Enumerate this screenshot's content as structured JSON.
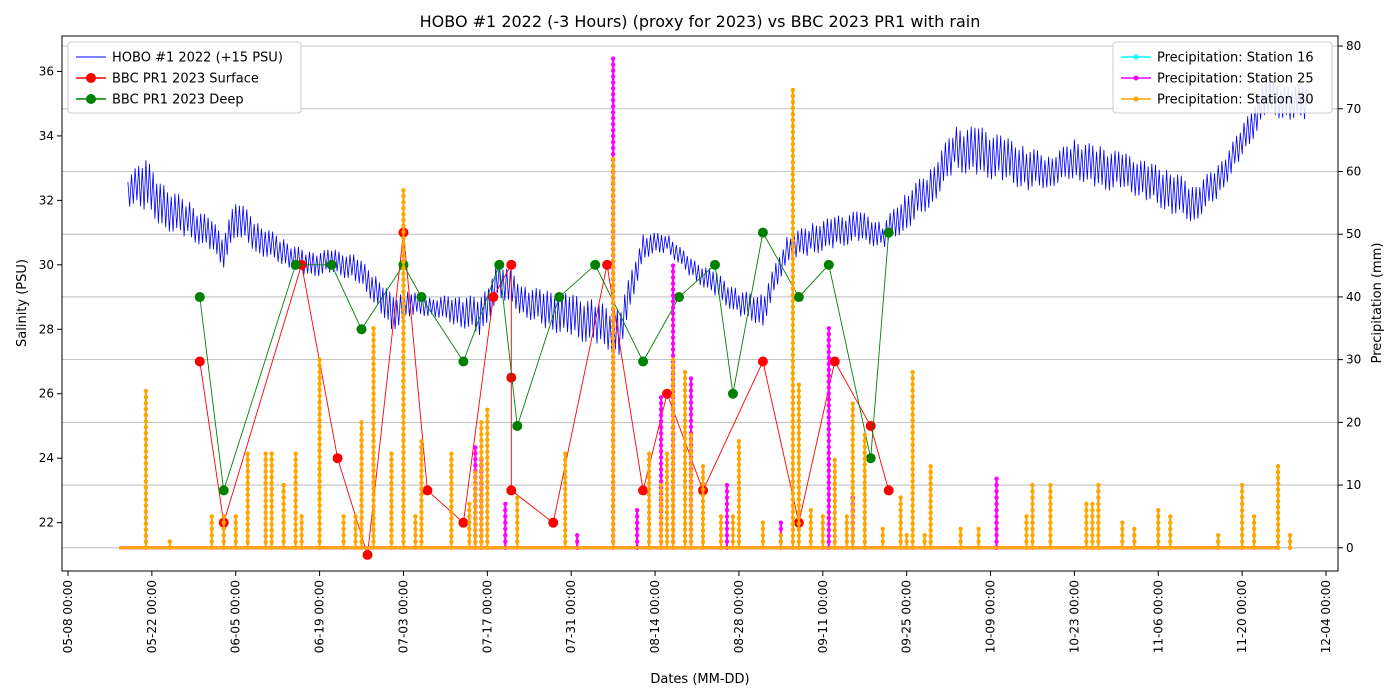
{
  "chart_data": {
    "type": "line",
    "title": "HOBO #1 2022 (-3 Hours) (proxy for 2023) vs BBC 2023 PR1 with rain",
    "xlabel": "Dates (MM-DD)",
    "ylabel_left": "Salinity (PSU)",
    "ylabel_right": "Precipitation (mm)",
    "x_domain": [
      "2023-05-07",
      "2023-12-06"
    ],
    "ylim_left": [
      20.5,
      37.1
    ],
    "ylim_right": [
      -3.7,
      81.6
    ],
    "grid": "horizontal-right-axis",
    "x_ticks": [
      {
        "date": "2023-05-08",
        "label": "05-08 00:00"
      },
      {
        "date": "2023-05-22",
        "label": "05-22 00:00"
      },
      {
        "date": "2023-06-05",
        "label": "06-05 00:00"
      },
      {
        "date": "2023-06-19",
        "label": "06-19 00:00"
      },
      {
        "date": "2023-07-03",
        "label": "07-03 00:00"
      },
      {
        "date": "2023-07-17",
        "label": "07-17 00:00"
      },
      {
        "date": "2023-07-31",
        "label": "07-31 00:00"
      },
      {
        "date": "2023-08-14",
        "label": "08-14 00:00"
      },
      {
        "date": "2023-08-28",
        "label": "08-28 00:00"
      },
      {
        "date": "2023-09-11",
        "label": "09-11 00:00"
      },
      {
        "date": "2023-09-25",
        "label": "09-25 00:00"
      },
      {
        "date": "2023-10-09",
        "label": "10-09 00:00"
      },
      {
        "date": "2023-10-23",
        "label": "10-23 00:00"
      },
      {
        "date": "2023-11-06",
        "label": "11-06 00:00"
      },
      {
        "date": "2023-11-20",
        "label": "11-20 00:00"
      },
      {
        "date": "2023-12-04",
        "label": "12-04 00:00"
      }
    ],
    "y_ticks_left": [
      22,
      24,
      26,
      28,
      30,
      32,
      34,
      36
    ],
    "y_ticks_right": [
      0,
      10,
      20,
      30,
      40,
      50,
      60,
      70,
      80
    ],
    "legend_left": {
      "placement": "upper-left",
      "entries": [
        {
          "label": "HOBO #1 2022 (+15 PSU)",
          "color": "#0000ff",
          "marker": "none"
        },
        {
          "label": "BBC PR1 2023 Surface",
          "color": "#ff0000",
          "marker": "circle"
        },
        {
          "label": "BBC PR1 2023 Deep",
          "color": "#008000",
          "marker": "circle"
        }
      ]
    },
    "legend_right": {
      "placement": "upper-right",
      "entries": [
        {
          "label": "Precipitation: Station 16",
          "color": "#00ffff",
          "marker": "dot"
        },
        {
          "label": "Precipitation: Station 25",
          "color": "#ff00ff",
          "marker": "dot"
        },
        {
          "label": "Precipitation: Station 30",
          "color": "#ffa500",
          "marker": "dot"
        }
      ]
    },
    "series": [
      {
        "name": "HOBO #1 2022 (+15 PSU)",
        "axis": "left",
        "color": "#0000ff",
        "style": "line-oscillating",
        "x": [
          "2023-05-18",
          "2023-05-21",
          "2023-05-24",
          "2023-05-28",
          "2023-06-01",
          "2023-06-03",
          "2023-06-05",
          "2023-06-09",
          "2023-06-13",
          "2023-06-17",
          "2023-06-21",
          "2023-06-25",
          "2023-06-29",
          "2023-07-01",
          "2023-07-04",
          "2023-07-08",
          "2023-07-12",
          "2023-07-16",
          "2023-07-19",
          "2023-07-23",
          "2023-07-27",
          "2023-07-31",
          "2023-08-04",
          "2023-08-08",
          "2023-08-12",
          "2023-08-16",
          "2023-08-20",
          "2023-08-24",
          "2023-08-28",
          "2023-09-01",
          "2023-09-05",
          "2023-09-09",
          "2023-09-13",
          "2023-09-17",
          "2023-09-21",
          "2023-09-25",
          "2023-09-29",
          "2023-10-03",
          "2023-10-07",
          "2023-10-11",
          "2023-10-15",
          "2023-10-19",
          "2023-10-23",
          "2023-10-27",
          "2023-10-31",
          "2023-11-04",
          "2023-11-08",
          "2023-11-12",
          "2023-11-16",
          "2023-11-20",
          "2023-11-24",
          "2023-11-28",
          "2023-12-01"
        ],
        "y": [
          32.3,
          32.5,
          31.8,
          31.4,
          30.9,
          30.4,
          31.5,
          30.8,
          30.4,
          30.0,
          30.1,
          29.9,
          29.1,
          28.5,
          28.8,
          28.7,
          28.6,
          28.4,
          29.6,
          28.9,
          28.6,
          28.4,
          28.2,
          27.9,
          30.6,
          30.7,
          29.9,
          29.4,
          28.8,
          28.6,
          30.5,
          30.8,
          31.0,
          31.2,
          30.9,
          31.7,
          32.4,
          33.6,
          33.5,
          33.3,
          33.0,
          32.9,
          33.3,
          33.0,
          32.9,
          32.6,
          32.3,
          31.9,
          32.6,
          33.8,
          35.2,
          35.0,
          35.1
        ],
        "amplitude": [
          0.5,
          0.8,
          0.7,
          0.6,
          0.5,
          0.5,
          0.6,
          0.5,
          0.4,
          0.4,
          0.4,
          0.4,
          0.5,
          0.6,
          0.4,
          0.3,
          0.5,
          0.6,
          0.6,
          0.5,
          0.6,
          0.7,
          0.7,
          0.7,
          0.4,
          0.3,
          0.3,
          0.4,
          0.4,
          0.5,
          0.4,
          0.5,
          0.5,
          0.5,
          0.4,
          0.6,
          0.6,
          0.7,
          0.8,
          0.7,
          0.7,
          0.5,
          0.6,
          0.7,
          0.6,
          0.6,
          0.7,
          0.6,
          0.5,
          0.5,
          0.6,
          0.5,
          0.6
        ]
      },
      {
        "name": "BBC PR1 2023 Surface",
        "axis": "left",
        "color": "#ff0000",
        "marker": "circle",
        "x": [
          "2023-05-30",
          "2023-06-03",
          "2023-06-16",
          "2023-06-22",
          "2023-06-27",
          "2023-07-03",
          "2023-07-07",
          "2023-07-13",
          "2023-07-18",
          "2023-07-21",
          "2023-07-21",
          "2023-07-21",
          "2023-07-28",
          "2023-08-06",
          "2023-08-12",
          "2023-08-16",
          "2023-08-22",
          "2023-09-01",
          "2023-09-07",
          "2023-09-13",
          "2023-09-19",
          "2023-09-22"
        ],
        "y": [
          27,
          22,
          30,
          24,
          21,
          31,
          23,
          22,
          29,
          30,
          26.5,
          23,
          22,
          30,
          23,
          26,
          23,
          27,
          22,
          27,
          25,
          23
        ]
      },
      {
        "name": "BBC PR1 2023 Deep",
        "axis": "left",
        "color": "#008000",
        "marker": "circle",
        "x": [
          "2023-05-30",
          "2023-06-03",
          "2023-06-15",
          "2023-06-21",
          "2023-06-26",
          "2023-07-03",
          "2023-07-06",
          "2023-07-13",
          "2023-07-19",
          "2023-07-22",
          "2023-07-29",
          "2023-08-04",
          "2023-08-12",
          "2023-08-18",
          "2023-08-24",
          "2023-08-27",
          "2023-09-01",
          "2023-09-07",
          "2023-09-12",
          "2023-09-19",
          "2023-09-22"
        ],
        "y": [
          29,
          23,
          30,
          30,
          28,
          30,
          29,
          27,
          30,
          25,
          29,
          30,
          27,
          29,
          30,
          26,
          31,
          29,
          30,
          24,
          31
        ]
      },
      {
        "name": "Precipitation: Station 16",
        "axis": "right",
        "color": "#00ffff",
        "style": "stem",
        "x": [],
        "y": []
      },
      {
        "name": "Precipitation: Station 25",
        "axis": "right",
        "color": "#ff00ff",
        "style": "stem",
        "x": [
          "2023-07-15",
          "2023-07-16",
          "2023-07-20",
          "2023-08-01",
          "2023-08-07",
          "2023-08-11",
          "2023-08-15",
          "2023-08-17",
          "2023-08-20",
          "2023-08-26",
          "2023-09-04",
          "2023-09-12",
          "2023-09-16",
          "2023-10-10"
        ],
        "y": [
          16,
          14,
          7,
          2,
          78,
          6,
          24,
          45,
          27,
          10,
          4,
          35,
          8,
          11
        ]
      },
      {
        "name": "Precipitation: Station 30",
        "axis": "right",
        "color": "#ffa500",
        "style": "stem",
        "x": [
          "2023-05-21",
          "2023-05-25",
          "2023-06-01",
          "2023-06-03",
          "2023-06-05",
          "2023-06-07",
          "2023-06-10",
          "2023-06-11",
          "2023-06-13",
          "2023-06-15",
          "2023-06-16",
          "2023-06-19",
          "2023-06-23",
          "2023-06-25",
          "2023-06-26",
          "2023-06-28",
          "2023-07-01",
          "2023-07-03",
          "2023-07-05",
          "2023-07-06",
          "2023-07-11",
          "2023-07-14",
          "2023-07-15",
          "2023-07-16",
          "2023-07-17",
          "2023-07-22",
          "2023-07-30",
          "2023-08-07",
          "2023-08-13",
          "2023-08-15",
          "2023-08-16",
          "2023-08-17",
          "2023-08-19",
          "2023-08-20",
          "2023-08-22",
          "2023-08-25",
          "2023-08-27",
          "2023-08-28",
          "2023-09-01",
          "2023-09-04",
          "2023-09-06",
          "2023-09-07",
          "2023-09-09",
          "2023-09-11",
          "2023-09-13",
          "2023-09-15",
          "2023-09-16",
          "2023-09-18",
          "2023-09-21",
          "2023-09-24",
          "2023-09-25",
          "2023-09-26",
          "2023-09-28",
          "2023-09-29",
          "2023-10-04",
          "2023-10-07",
          "2023-10-15",
          "2023-10-16",
          "2023-10-19",
          "2023-10-25",
          "2023-10-26",
          "2023-10-27",
          "2023-10-31",
          "2023-11-02",
          "2023-11-06",
          "2023-11-08",
          "2023-11-16",
          "2023-11-20",
          "2023-11-22",
          "2023-11-26",
          "2023-11-28"
        ],
        "y": [
          25,
          1,
          5,
          5,
          5,
          15,
          15,
          15,
          10,
          15,
          5,
          30,
          5,
          5,
          20,
          35,
          15,
          57,
          5,
          17,
          15,
          7,
          12,
          20,
          22,
          8,
          15,
          62,
          15,
          10,
          15,
          30,
          28,
          18,
          13,
          5,
          5,
          17,
          4,
          2,
          73,
          26,
          6,
          5,
          14,
          5,
          23,
          18,
          3,
          8,
          2,
          28,
          2,
          13,
          3,
          3,
          5,
          10,
          10,
          7,
          7,
          10,
          4,
          3,
          6,
          5,
          2,
          10,
          5,
          13,
          2
        ]
      }
    ]
  }
}
